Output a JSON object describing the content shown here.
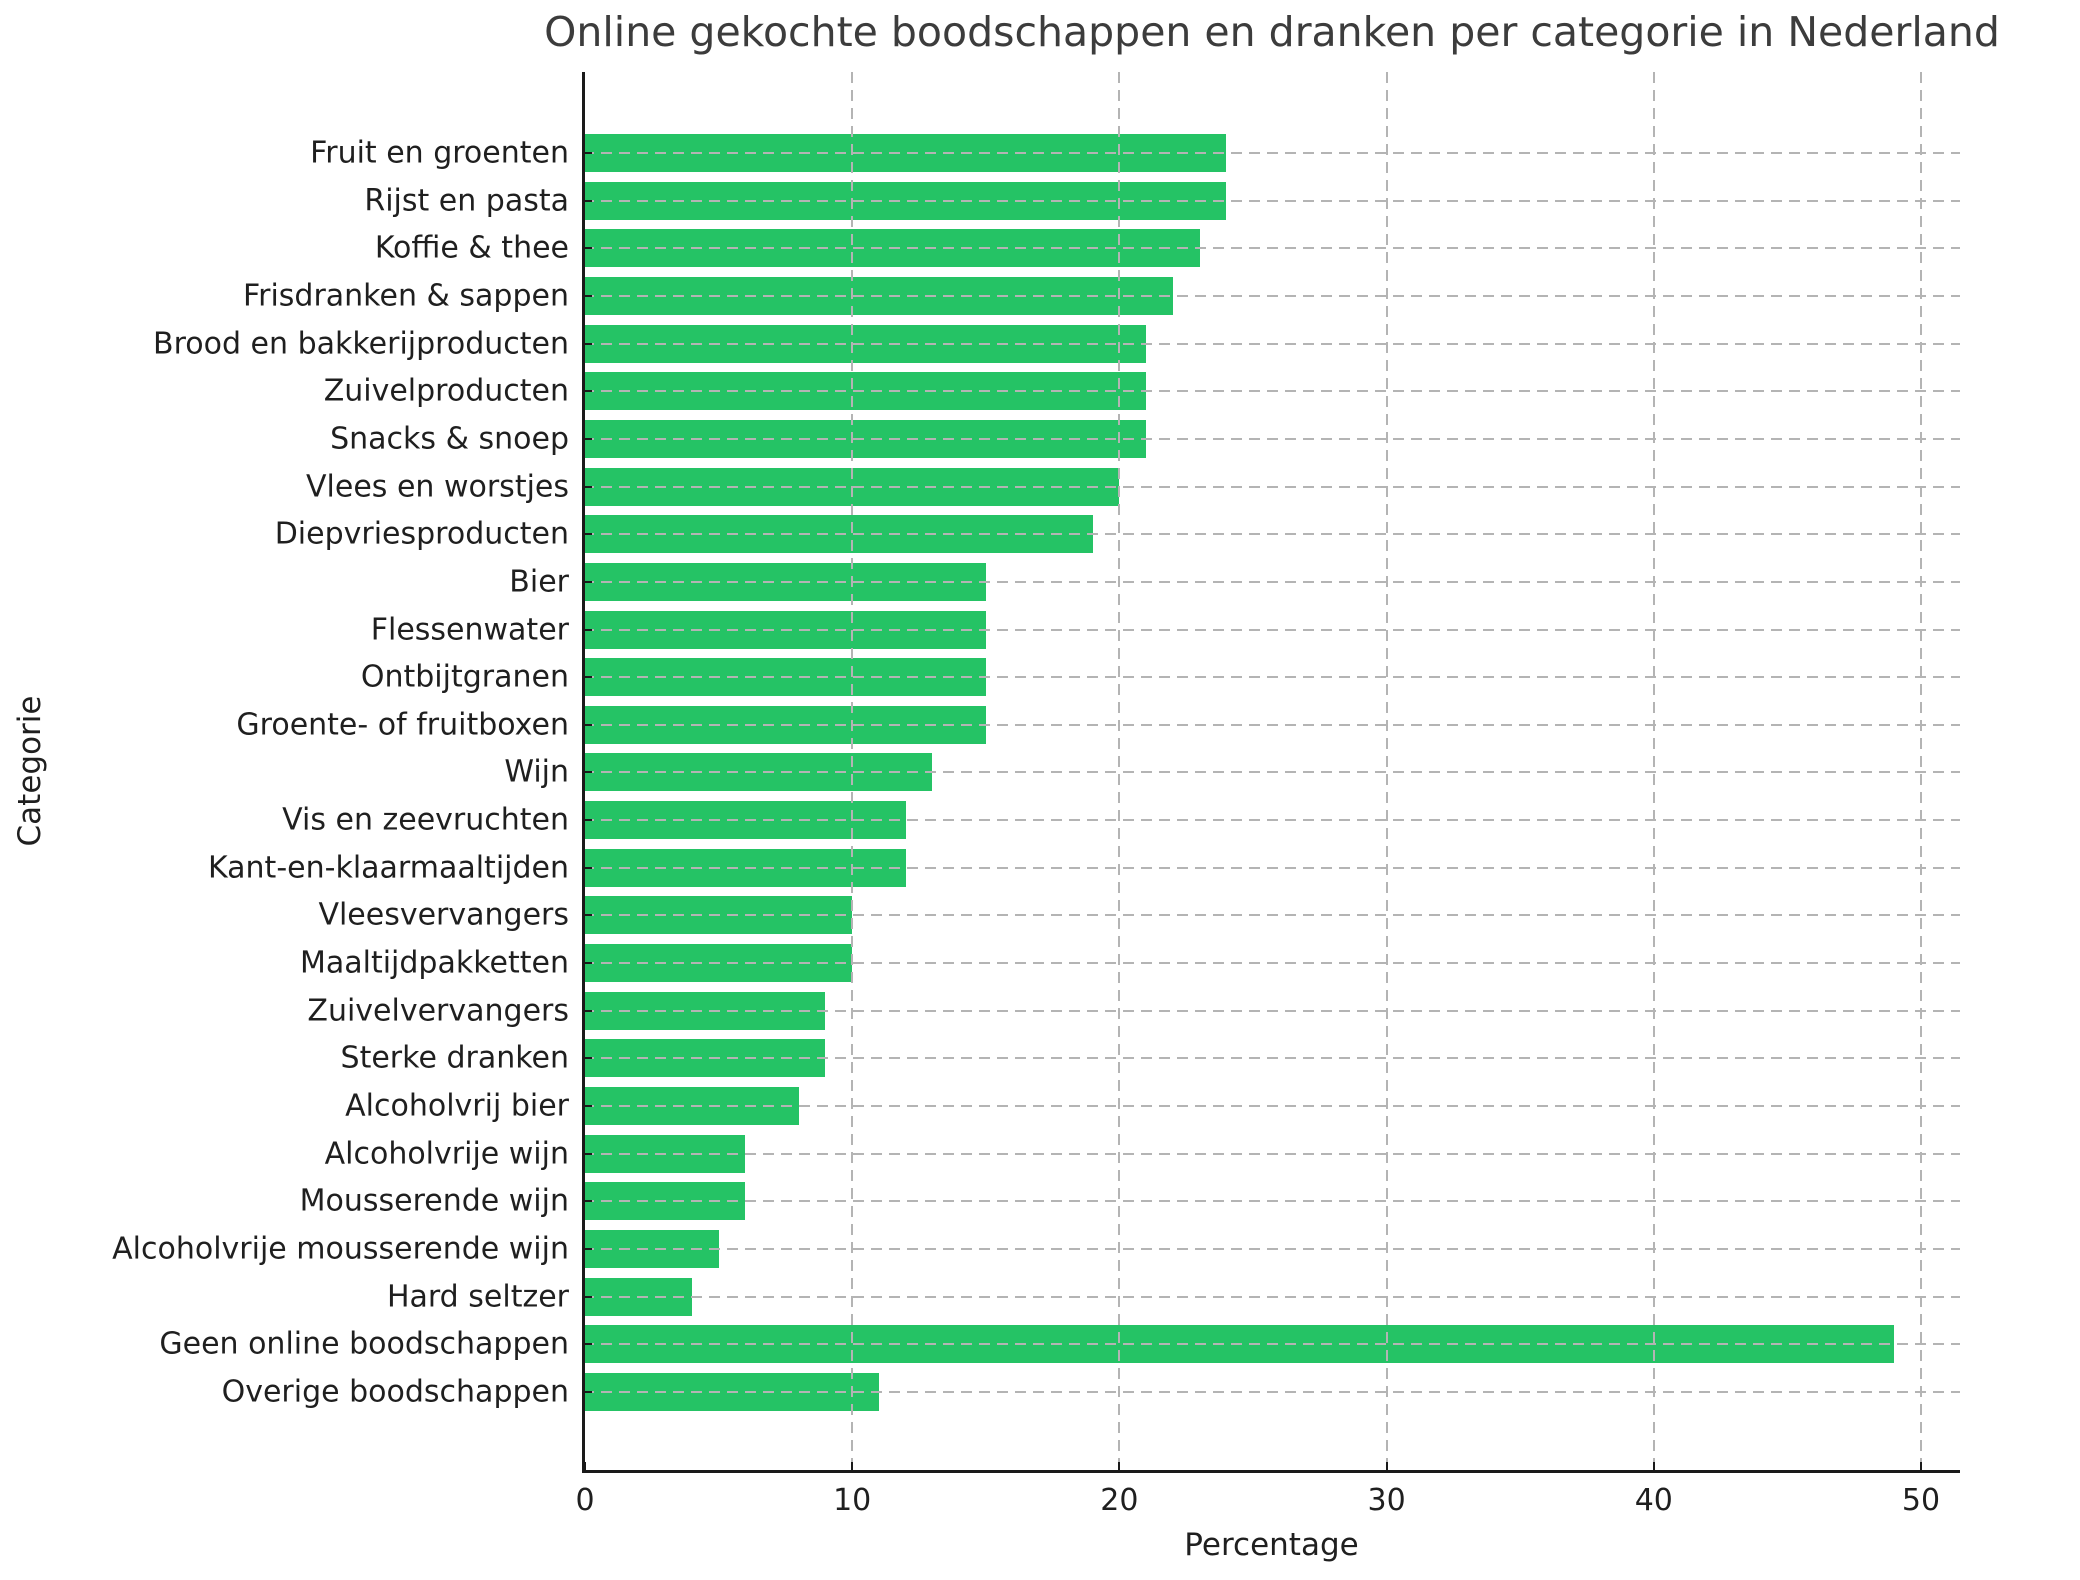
{
  "chart_data": {
    "type": "bar",
    "orientation": "horizontal",
    "title": "Online gekochte boodschappen en dranken per categorie in Nederland",
    "xlabel": "Percentage",
    "ylabel": "Categorie",
    "xlim": [
      0,
      51.5
    ],
    "xticks": [
      0,
      10,
      20,
      30,
      40,
      50
    ],
    "grid": "dashed, both axes, drawn above bars",
    "legend": "none",
    "categories": [
      "Fruit en groenten",
      "Rijst en pasta",
      "Koffie & thee",
      "Frisdranken & sappen",
      "Brood en bakkerijproducten",
      "Zuivelproducten",
      "Snacks & snoep",
      "Vlees en worstjes",
      "Diepvriesproducten",
      "Bier",
      "Flessenwater",
      "Ontbijtgranen",
      "Groente- of fruitboxen",
      "Wijn",
      "Vis en zeevruchten",
      "Kant-en-klaarmaaltijden",
      "Vleesvervangers",
      "Maaltijdpakketten",
      "Zuivelvervangers",
      "Sterke dranken",
      "Alcoholvrij bier",
      "Alcoholvrije wijn",
      "Mousserende wijn",
      "Alcoholvrije mousserende wijn",
      "Hard seltzer",
      "Geen online boodschappen",
      "Overige boodschappen"
    ],
    "values": [
      24,
      24,
      23,
      22,
      21,
      21,
      21,
      20,
      19,
      15,
      15,
      15,
      15,
      13,
      12,
      12,
      10,
      10,
      9,
      9,
      8,
      6,
      6,
      5,
      4,
      49,
      11
    ],
    "colors": {
      "bar": "#25c365",
      "grid": "#b4b4b4",
      "title_text": "#3c3c3c",
      "axis_text": "#1f1f1f",
      "spine": "#1a1a1a",
      "background": "#ffffff"
    }
  }
}
